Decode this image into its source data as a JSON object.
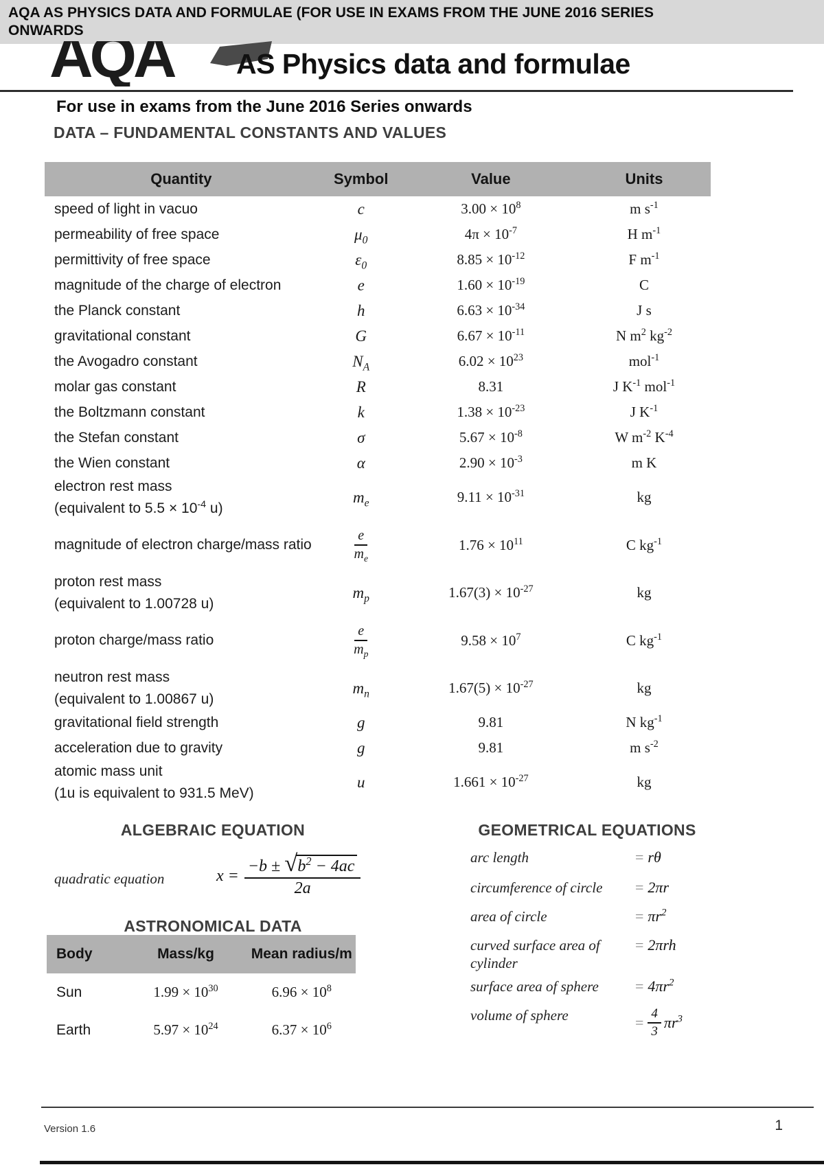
{
  "banner": {
    "line1": "AQA AS PHYSICS DATA AND FORMULAE (FOR USE IN EXAMS FROM THE JUNE 2016 SERIES",
    "line2": "ONWARDS"
  },
  "header": {
    "logo": "AQA",
    "title": "AS Physics data and formulae",
    "subtitle": "For use in exams from the June 2016 Series onwards"
  },
  "constants_section": {
    "heading": "DATA – FUNDAMENTAL CONSTANTS AND VALUES",
    "columns": [
      "Quantity",
      "Symbol",
      "Value",
      "Units"
    ],
    "rows": [
      {
        "quantity": "speed of light in vacuo",
        "symbol": "c",
        "value": "3.00 × 10^{8}",
        "units": "m s^{-1}"
      },
      {
        "quantity": "permeability of free space",
        "symbol": "μ_{0}",
        "value": "4π × 10^{-7}",
        "units": "H m^{-1}"
      },
      {
        "quantity": "permittivity of free space",
        "symbol": "ε_{0}",
        "value": "8.85 × 10^{-12}",
        "units": "F m^{-1}"
      },
      {
        "quantity": "magnitude of the charge of electron",
        "symbol": "e",
        "value": "1.60 × 10^{-19}",
        "units": "C"
      },
      {
        "quantity": "the Planck constant",
        "symbol": "h",
        "value": "6.63 × 10^{-34}",
        "units": "J s"
      },
      {
        "quantity": "gravitational constant",
        "symbol": "G",
        "value": "6.67 × 10^{-11}",
        "units": "N m^{2} kg^{-2}"
      },
      {
        "quantity": "the Avogadro constant",
        "symbol": "N_{A}",
        "value": "6.02 × 10^{23}",
        "units": "mol^{-1}"
      },
      {
        "quantity": "molar gas constant",
        "symbol": "R",
        "value": "8.31",
        "units": "J K^{-1} mol^{-1}"
      },
      {
        "quantity": "the Boltzmann constant",
        "symbol": "k",
        "value": "1.38 × 10^{-23}",
        "units": "J K^{-1}"
      },
      {
        "quantity": "the Stefan constant",
        "symbol": "σ",
        "value": "5.67 × 10^{-8}",
        "units": "W m^{-2} K^{-4}"
      },
      {
        "quantity": "the Wien constant",
        "symbol": "α",
        "value": "2.90 × 10^{-3}",
        "units": "m K"
      },
      {
        "quantity": "electron rest mass\n(equivalent to 5.5 × 10^{-4} u)",
        "symbol": "m_{e}",
        "value": "9.11 × 10^{-31}",
        "units": "kg"
      },
      {
        "quantity": "magnitude of electron charge/mass ratio",
        "symbol_frac": [
          "e",
          "m_{e}"
        ],
        "value": "1.76 × 10^{11}",
        "units": "C kg^{-1}"
      },
      {
        "quantity": "proton rest mass\n(equivalent to 1.00728 u)",
        "symbol": "m_{p}",
        "value": "1.67(3) × 10^{-27}",
        "units": "kg"
      },
      {
        "quantity": "proton charge/mass ratio",
        "symbol_frac": [
          "e",
          "m_{p}"
        ],
        "value": "9.58 × 10^{7}",
        "units": "C kg^{-1}"
      },
      {
        "quantity": "neutron rest mass\n(equivalent to 1.00867 u)",
        "symbol": "m_{n}",
        "value": "1.67(5) × 10^{-27}",
        "units": "kg"
      },
      {
        "quantity": "gravitational field strength",
        "symbol": "g",
        "value": "9.81",
        "units": "N kg^{-1}"
      },
      {
        "quantity": "acceleration due to gravity",
        "symbol": "g",
        "value": "9.81",
        "units": "m s^{-2}"
      },
      {
        "quantity": "atomic mass unit\n(1u is equivalent to 931.5 MeV)",
        "symbol": "u",
        "value": "1.661 × 10^{-27}",
        "units": "kg"
      }
    ]
  },
  "algebraic_section": {
    "heading": "ALGEBRAIC EQUATION",
    "label": "quadratic equation",
    "lhs": "x =",
    "num_pre": "−b ±",
    "radicand": "b^{2} − 4ac",
    "den": "2a"
  },
  "astronomical_section": {
    "heading": "ASTRONOMICAL DATA",
    "columns": [
      "Body",
      "Mass/kg",
      "Mean radius/m"
    ],
    "rows": [
      {
        "body": "Sun",
        "mass": "1.99 × 10^{30}",
        "radius": "6.96 × 10^{8}"
      },
      {
        "body": "Earth",
        "mass": "5.97 × 10^{24}",
        "radius": "6.37 × 10^{6}"
      }
    ]
  },
  "geometrical_section": {
    "heading": "GEOMETRICAL EQUATIONS",
    "equals": "=",
    "rows": [
      {
        "label": "arc length",
        "eq": "rθ"
      },
      {
        "label": "circumference of circle",
        "eq": "2πr"
      },
      {
        "label": "area of circle",
        "eq": "πr^{2}"
      },
      {
        "label": "curved surface area of\ncylinder",
        "eq": "2πrh"
      },
      {
        "label": "surface area of sphere",
        "eq": "4πr^{2}"
      },
      {
        "label": "volume of sphere",
        "frac": [
          "4",
          "3"
        ],
        "eq": "πr^{3}"
      }
    ]
  },
  "footer": {
    "version": "Version 1.6",
    "page": "1"
  },
  "colors": {
    "banner_bg": "#d8d8d8",
    "table_header_bg": "#b1b1b1",
    "text": "#1a1a1a",
    "swoosh": "#4a4a4a"
  }
}
